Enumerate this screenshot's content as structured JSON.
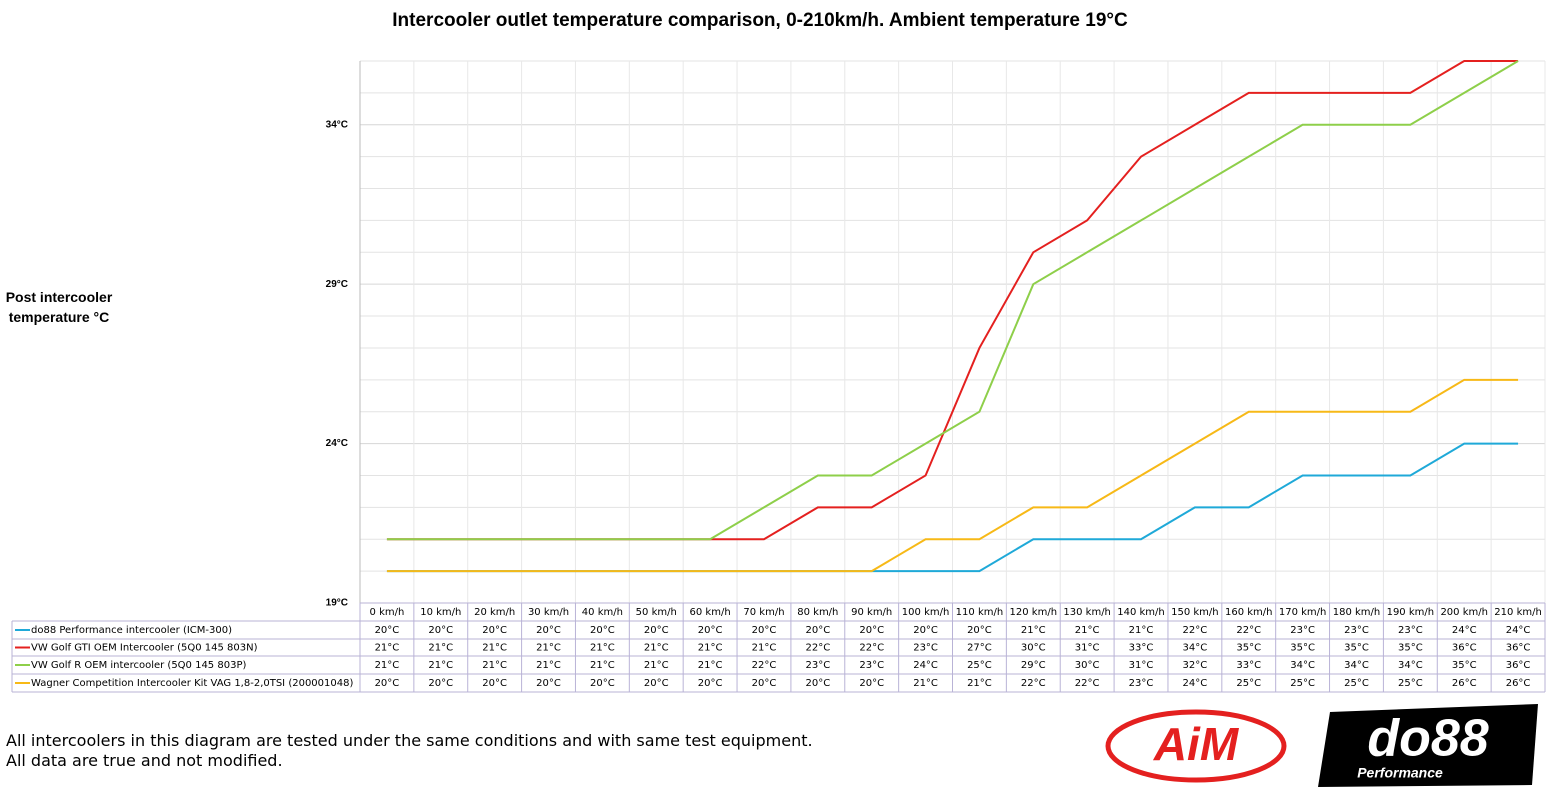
{
  "chart_data": {
    "type": "line",
    "title": "Intercooler outlet temperature comparison, 0-210km/h. Ambient temperature 19°C",
    "y_label": "Post intercooler temperature °C",
    "categories": [
      "0 km/h",
      "10 km/h",
      "20 km/h",
      "30 km/h",
      "40 km/h",
      "50 km/h",
      "60 km/h",
      "70 km/h",
      "80 km/h",
      "90 km/h",
      "100 km/h",
      "110 km/h",
      "120 km/h",
      "130 km/h",
      "140 km/h",
      "150 km/h",
      "160 km/h",
      "170 km/h",
      "180 km/h",
      "190 km/h",
      "200 km/h",
      "210 km/h"
    ],
    "series": [
      {
        "name": "do88 Performance intercooler (ICM-300)",
        "color": "#1fa9d8",
        "values": [
          20,
          20,
          20,
          20,
          20,
          20,
          20,
          20,
          20,
          20,
          20,
          20,
          21,
          21,
          21,
          22,
          22,
          23,
          23,
          23,
          24,
          24
        ],
        "value_labels": [
          "20°C",
          "20°C",
          "20°C",
          "20°C",
          "20°C",
          "20°C",
          "20°C",
          "20°C",
          "20°C",
          "20°C",
          "20°C",
          "20°C",
          "21°C",
          "21°C",
          "21°C",
          "22°C",
          "22°C",
          "23°C",
          "23°C",
          "23°C",
          "24°C",
          "24°C"
        ]
      },
      {
        "name": "VW Golf GTI OEM Intercooler (5Q0 145 803N)",
        "color": "#e4201f",
        "values": [
          21,
          21,
          21,
          21,
          21,
          21,
          21,
          21,
          22,
          22,
          23,
          27,
          30,
          31,
          33,
          34,
          35,
          35,
          35,
          35,
          36,
          36
        ],
        "value_labels": [
          "21°C",
          "21°C",
          "21°C",
          "21°C",
          "21°C",
          "21°C",
          "21°C",
          "21°C",
          "22°C",
          "22°C",
          "23°C",
          "27°C",
          "30°C",
          "31°C",
          "33°C",
          "34°C",
          "35°C",
          "35°C",
          "35°C",
          "35°C",
          "36°C",
          "36°C"
        ]
      },
      {
        "name": "VW Golf R OEM intercooler (5Q0 145 803P)",
        "color": "#8ecf4a",
        "values": [
          21,
          21,
          21,
          21,
          21,
          21,
          21,
          22,
          23,
          23,
          24,
          25,
          29,
          30,
          31,
          32,
          33,
          34,
          34,
          34,
          35,
          36
        ],
        "value_labels": [
          "21°C",
          "21°C",
          "21°C",
          "21°C",
          "21°C",
          "21°C",
          "21°C",
          "22°C",
          "23°C",
          "23°C",
          "24°C",
          "25°C",
          "29°C",
          "30°C",
          "31°C",
          "32°C",
          "33°C",
          "34°C",
          "34°C",
          "34°C",
          "35°C",
          "36°C"
        ]
      },
      {
        "name": "Wagner Competition Intercooler Kit VAG 1,8-2,0TSI (200001048)",
        "color": "#f7b917",
        "values": [
          20,
          20,
          20,
          20,
          20,
          20,
          20,
          20,
          20,
          20,
          21,
          21,
          22,
          22,
          23,
          24,
          25,
          25,
          25,
          25,
          26,
          26
        ],
        "value_labels": [
          "20°C",
          "20°C",
          "20°C",
          "20°C",
          "20°C",
          "20°C",
          "20°C",
          "20°C",
          "20°C",
          "20°C",
          "21°C",
          "21°C",
          "22°C",
          "22°C",
          "23°C",
          "24°C",
          "25°C",
          "25°C",
          "25°C",
          "25°C",
          "26°C",
          "26°C"
        ]
      }
    ],
    "ylim": [
      19,
      36
    ],
    "yticks": [
      {
        "value": 19,
        "label": "19°C"
      },
      {
        "value": 24,
        "label": "24°C"
      },
      {
        "value": 29,
        "label": "29°C"
      },
      {
        "value": 34,
        "label": "34°C"
      }
    ],
    "minor_yticks": [
      20,
      21,
      22,
      23,
      25,
      26,
      27,
      28,
      30,
      31,
      32,
      33,
      35,
      36
    ],
    "grid": true,
    "notes": [
      "All intercoolers in this diagram are tested under the same conditions and with same test equipment.",
      "All data are true and not modified."
    ],
    "logos": [
      "AiM",
      "do88",
      "Performance"
    ]
  }
}
